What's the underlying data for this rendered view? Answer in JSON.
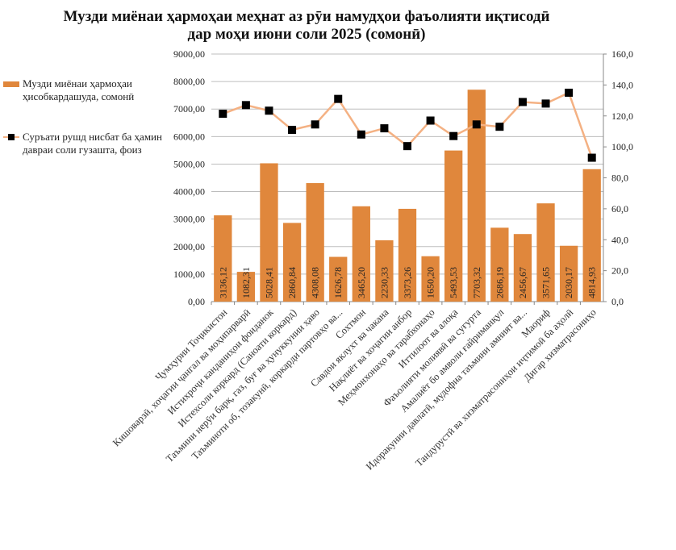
{
  "chart_data": {
    "type": "bar",
    "title": "Музди миёнаи ҳармоҳаи меҳнат аз рӯи намудҳои фаъолияти иқтисодӣ",
    "subtitle": "дар моҳи июни соли 2025 (сомонӣ)",
    "categories": [
      "Ҷумҳурии Тоҷикистон",
      "Кишоварзӣ, хоҷагии ҷангал ва моҳипарварӣ",
      "Истихроҷи канданиҳои фоиданок",
      "Истехсоли коркард (Саноати коркард)",
      "Таъмини нерӯи барқ, газ, буғ ва ҳунуккунии ҳаво",
      "Таъминоти об, тозакунӣ, коркарди партовҳо ва...",
      "Сохтмон",
      "Савдои яклухт ва чакана",
      "Нақлиёт ва хоҷагии анбор",
      "Меҳмонхонаҳо ва тарабхонаҳо",
      "Иттилоот ва алоқа",
      "Фаъолияти молиявӣ ва суғурта",
      "Амалиёт бо амволи ғайриманқул",
      "Идоракунии давлатӣ, мудофиа таъмини амният ва...",
      "Маориф",
      "Тандурустӣ ва хизматрасониҳои иҷтимоӣ ба аҳолӣ",
      "Дигар хизматрасониҳо"
    ],
    "series": [
      {
        "name": "Музди миёнаи ҳармоҳаи ҳисобкардашуда, сомонӣ",
        "type": "bar",
        "axis": "left",
        "color": "#E0873C",
        "values": [
          3136.12,
          1082.31,
          5028.41,
          2860.84,
          4308.08,
          1626.78,
          3465.2,
          2230.33,
          3373.26,
          1650.2,
          5493.53,
          7703.32,
          2686.19,
          2456.67,
          3571.65,
          2030.17,
          4814.93
        ],
        "labels": [
          "3136,12",
          "1082,31",
          "5028,41",
          "2860,84",
          "4308,08",
          "1626,78",
          "3465,20",
          "2230,33",
          "3373,26",
          "1650,20",
          "5493,53",
          "7703,32",
          "2686,19",
          "2456,67",
          "3571,65",
          "2030,17",
          "4814,93"
        ]
      },
      {
        "name": "Суръати рушд нисбат ба ҳамин давраи соли гузашта, фоиз",
        "type": "line",
        "axis": "right",
        "color": "#F4B183",
        "marker_color": "#000000",
        "values": [
          121.4,
          127.0,
          123.4,
          111.0,
          114.5,
          131.0,
          108.0,
          112.0,
          100.5,
          117.0,
          107.0,
          114.5,
          113.0,
          129.0,
          128.0,
          135.0,
          93.0
        ]
      }
    ],
    "ylim": [
      0,
      9000
    ],
    "y_ticks": [
      "0,00",
      "1000,00",
      "2000,00",
      "3000,00",
      "4000,00",
      "5000,00",
      "6000,00",
      "7000,00",
      "8000,00",
      "9000,00"
    ],
    "y2lim": [
      0,
      160
    ],
    "y2_ticks": [
      "0,0",
      "20,0",
      "40,0",
      "60,0",
      "80,0",
      "100,0",
      "120,0",
      "140,0",
      "160,0"
    ],
    "grid": true,
    "legend_position": "left"
  }
}
